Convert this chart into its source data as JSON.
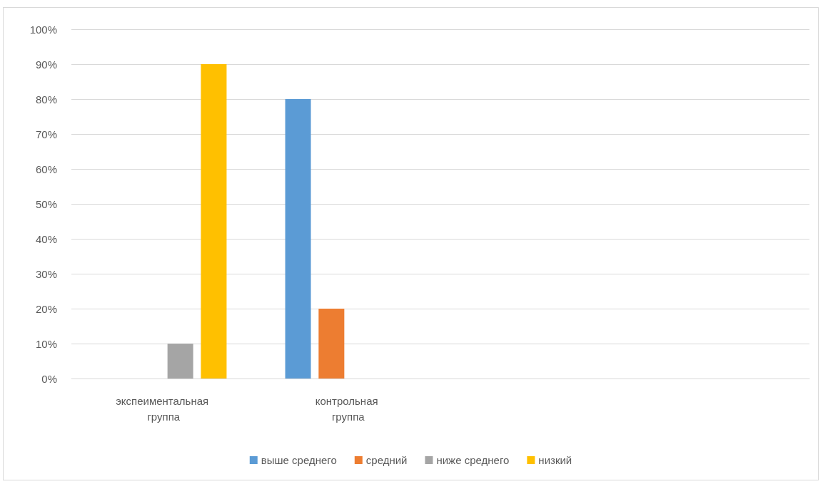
{
  "chart_data": {
    "type": "bar",
    "categories": [
      "экспеиментальная группа",
      "контрольная группа",
      null,
      null
    ],
    "series": [
      {
        "name": "выше среднего",
        "color": "#5b9bd5",
        "values": [
          0,
          80,
          null,
          null
        ]
      },
      {
        "name": "средний",
        "color": "#ed7d31",
        "values": [
          0,
          20,
          null,
          null
        ]
      },
      {
        "name": "ниже среднего",
        "color": "#a5a5a5",
        "values": [
          10,
          0,
          null,
          null
        ]
      },
      {
        "name": "низкий",
        "color": "#ffc000",
        "values": [
          90,
          0,
          null,
          null
        ]
      }
    ],
    "ylim": [
      0,
      100
    ],
    "yticks": [
      {
        "value": 0,
        "label": "0%"
      },
      {
        "value": 10,
        "label": "10%"
      },
      {
        "value": 20,
        "label": "20%"
      },
      {
        "value": 30,
        "label": "30%"
      },
      {
        "value": 40,
        "label": "40%"
      },
      {
        "value": 50,
        "label": "50%"
      },
      {
        "value": 60,
        "label": "60%"
      },
      {
        "value": 70,
        "label": "70%"
      },
      {
        "value": 80,
        "label": "80%"
      },
      {
        "value": 90,
        "label": "90%"
      },
      {
        "value": 100,
        "label": "100%"
      }
    ],
    "grid": "y",
    "legend": "bottom"
  }
}
